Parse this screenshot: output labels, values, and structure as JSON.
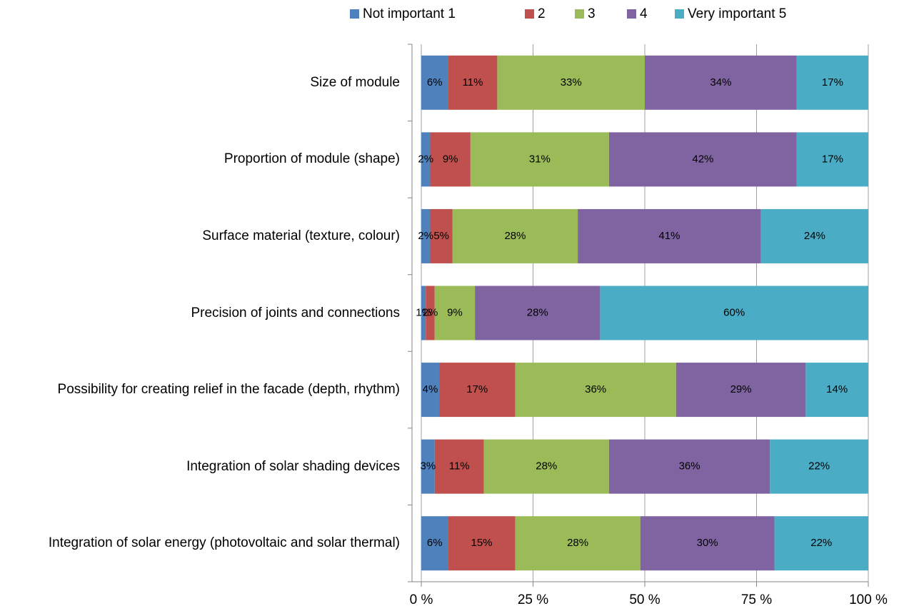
{
  "chart_data": {
    "type": "stacked_barh",
    "categories": [
      "Size of module",
      "Proportion of module (shape)",
      "Surface material (texture, colour)",
      "Precision of joints and connections",
      "Possibility for creating relief in the facade (depth, rhythm)",
      "Integration of solar shading devices",
      "Integration of solar energy (photovoltaic and solar thermal)"
    ],
    "series": [
      {
        "name": "Not important 1",
        "color": "#4f81bd",
        "values": [
          6,
          2,
          2,
          1,
          4,
          3,
          6
        ],
        "value_labels": [
          "6%",
          "2%",
          "2%",
          "1%",
          "4%",
          "3%",
          "6%"
        ]
      },
      {
        "name": "2",
        "color": "#c0504d",
        "values": [
          11,
          9,
          5,
          2,
          17,
          11,
          15
        ],
        "value_labels": [
          "11%",
          "9%",
          "5%",
          "2%",
          "17%",
          "11%",
          "15%"
        ]
      },
      {
        "name": "3",
        "color": "#9bbb59",
        "values": [
          33,
          31,
          28,
          9,
          36,
          28,
          28
        ],
        "value_labels": [
          "33%",
          "31%",
          "28%",
          "9%",
          "36%",
          "28%",
          "28%"
        ]
      },
      {
        "name": "4",
        "color": "#8064a2",
        "values": [
          34,
          42,
          41,
          28,
          29,
          36,
          30
        ],
        "value_labels": [
          "34%",
          "42%",
          "41%",
          "28%",
          "29%",
          "36%",
          "30%"
        ]
      },
      {
        "name": "Very important 5",
        "color": "#4bacc6",
        "values": [
          17,
          17,
          24,
          60,
          14,
          22,
          22
        ],
        "value_labels": [
          "17%",
          "17%",
          "24%",
          "60%",
          "14%",
          "22%",
          "22%"
        ]
      }
    ],
    "xlim": [
      0,
      100
    ],
    "xticks": [
      {
        "value": 0,
        "label": "0 %"
      },
      {
        "value": 25,
        "label": "25 %"
      },
      {
        "value": 50,
        "label": "50 %"
      },
      {
        "value": 75,
        "label": "75 %"
      },
      {
        "value": 100,
        "label": "100 %"
      }
    ],
    "grid": true,
    "legend": "top"
  }
}
